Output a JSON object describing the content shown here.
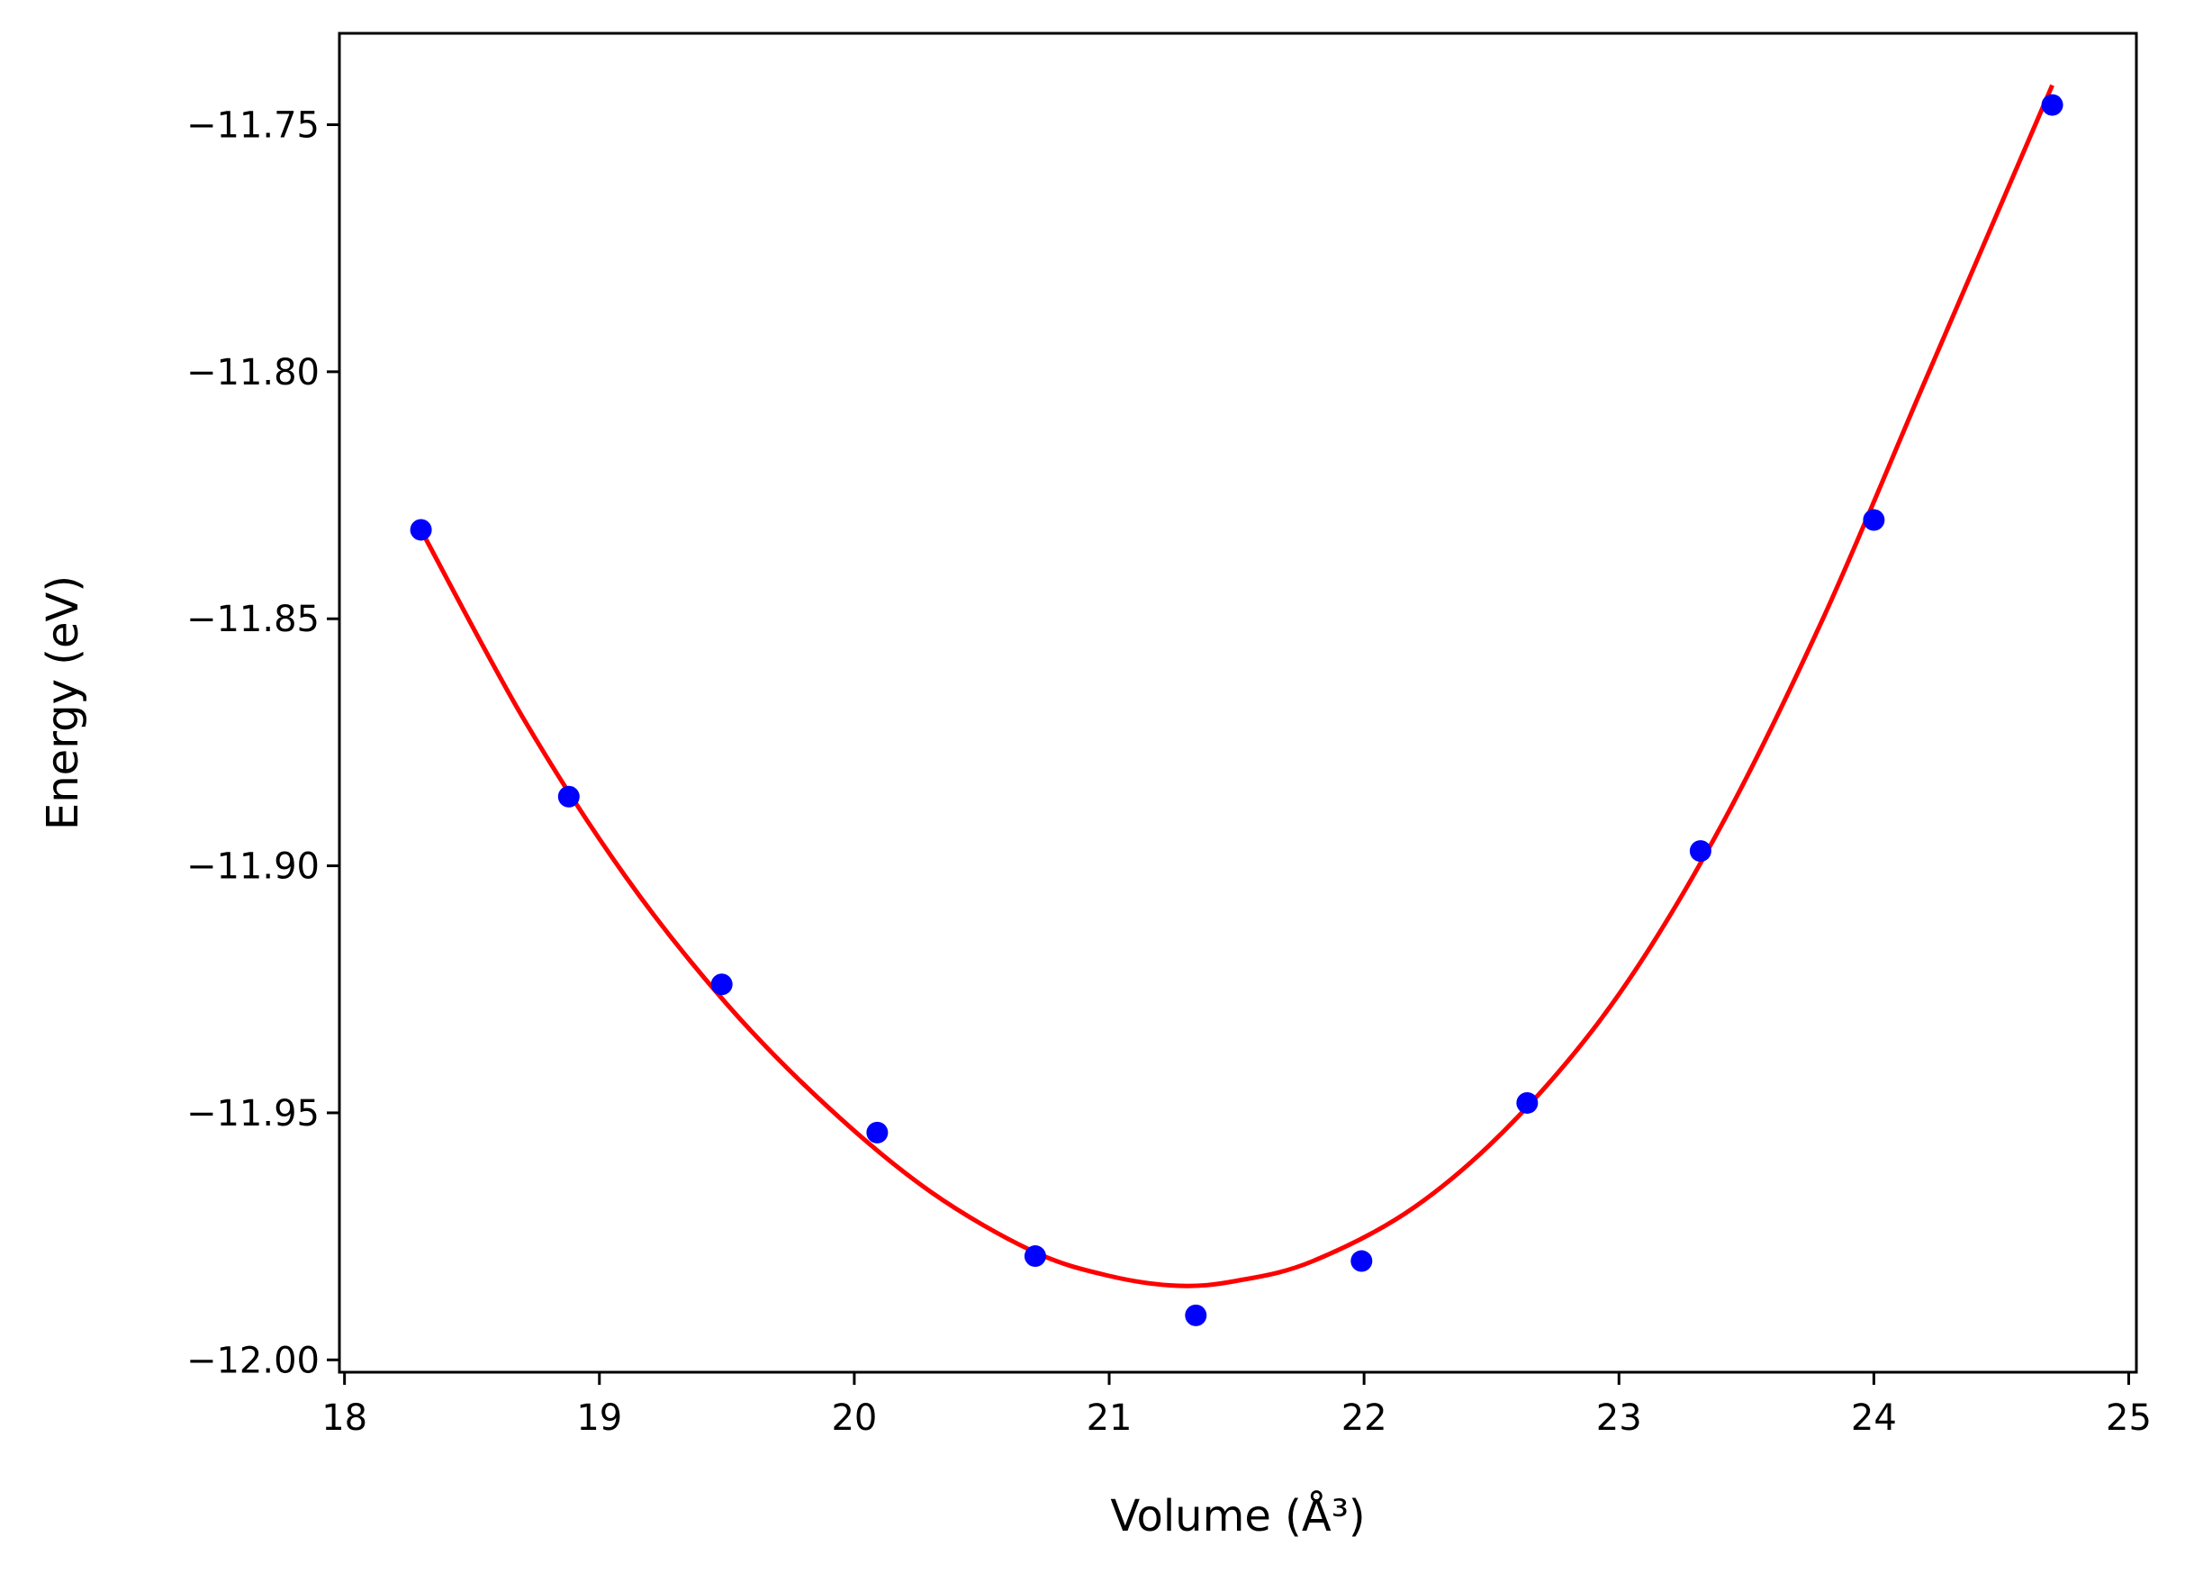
{
  "chart_data": {
    "type": "scatter",
    "xlabel": "Volume (Å³)",
    "ylabel": "Energy (eV)",
    "xlim": [
      17.98,
      25.03
    ],
    "ylim": [
      -12.0025,
      -11.7315
    ],
    "x_ticks": [
      18,
      19,
      20,
      21,
      22,
      23,
      24,
      25
    ],
    "x_tick_labels": [
      "18",
      "19",
      "20",
      "21",
      "22",
      "23",
      "24",
      "25"
    ],
    "y_ticks": [
      -11.75,
      -11.8,
      -11.85,
      -11.9,
      -11.95,
      -12.0
    ],
    "y_tick_labels": [
      "−11.75",
      "−11.80",
      "−11.85",
      "−11.90",
      "−11.95",
      "−12.00"
    ],
    "grid": false,
    "series": [
      {
        "kind": "points",
        "color": "#0000ff",
        "x": [
          18.3,
          18.88,
          19.48,
          20.09,
          20.71,
          21.34,
          21.99,
          22.64,
          23.32,
          24.0,
          24.7
        ],
        "y": [
          -11.832,
          -11.886,
          -11.924,
          -11.954,
          -11.979,
          -11.991,
          -11.98,
          -11.948,
          -11.897,
          -11.83,
          -11.746
        ]
      },
      {
        "kind": "fit-curve",
        "color": "#ff0000",
        "x": [
          18.3,
          18.7,
          19.1,
          19.5,
          19.9,
          20.3,
          20.7,
          21.0,
          21.27,
          21.5,
          21.8,
          22.2,
          22.6,
          23.0,
          23.4,
          23.8,
          24.2,
          24.7
        ],
        "y": [
          -11.832,
          -11.87,
          -11.902,
          -11.928,
          -11.949,
          -11.966,
          -11.978,
          -11.983,
          -11.985,
          -11.984,
          -11.98,
          -11.969,
          -11.951,
          -11.926,
          -11.892,
          -11.85,
          -11.802,
          -11.742
        ]
      }
    ]
  }
}
